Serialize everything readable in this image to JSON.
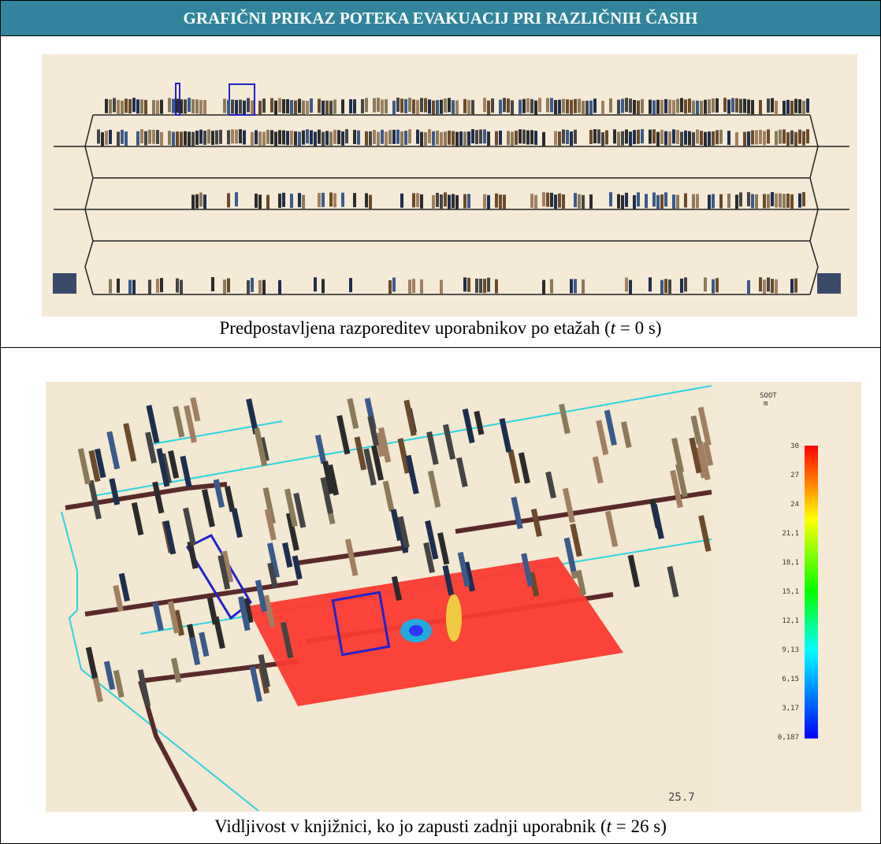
{
  "header": {
    "title": "GRAFIČNI PRIKAZ POTEKA EVAKUACIJ PRI RAZLIČNIH ČASIH"
  },
  "panels": [
    {
      "caption": {
        "before": "Predpostavljena razporeditev uporabnikov po etažah (",
        "var": "t",
        "after": " = 0 s)"
      }
    },
    {
      "caption": {
        "before": "Vidljivost v knjižnici, ko jo zapusti zadnji uporabnik (",
        "var": "t",
        "after": " = 26 s)"
      },
      "colorbar": {
        "quantity": "SOOT",
        "unit": "m",
        "labels": [
          "30",
          "27",
          "24",
          "21,1",
          "18,1",
          "15,1",
          "12,1",
          "9,13",
          "6,15",
          "3,17",
          "0,187"
        ]
      },
      "timestamp": "25.7"
    }
  ]
}
